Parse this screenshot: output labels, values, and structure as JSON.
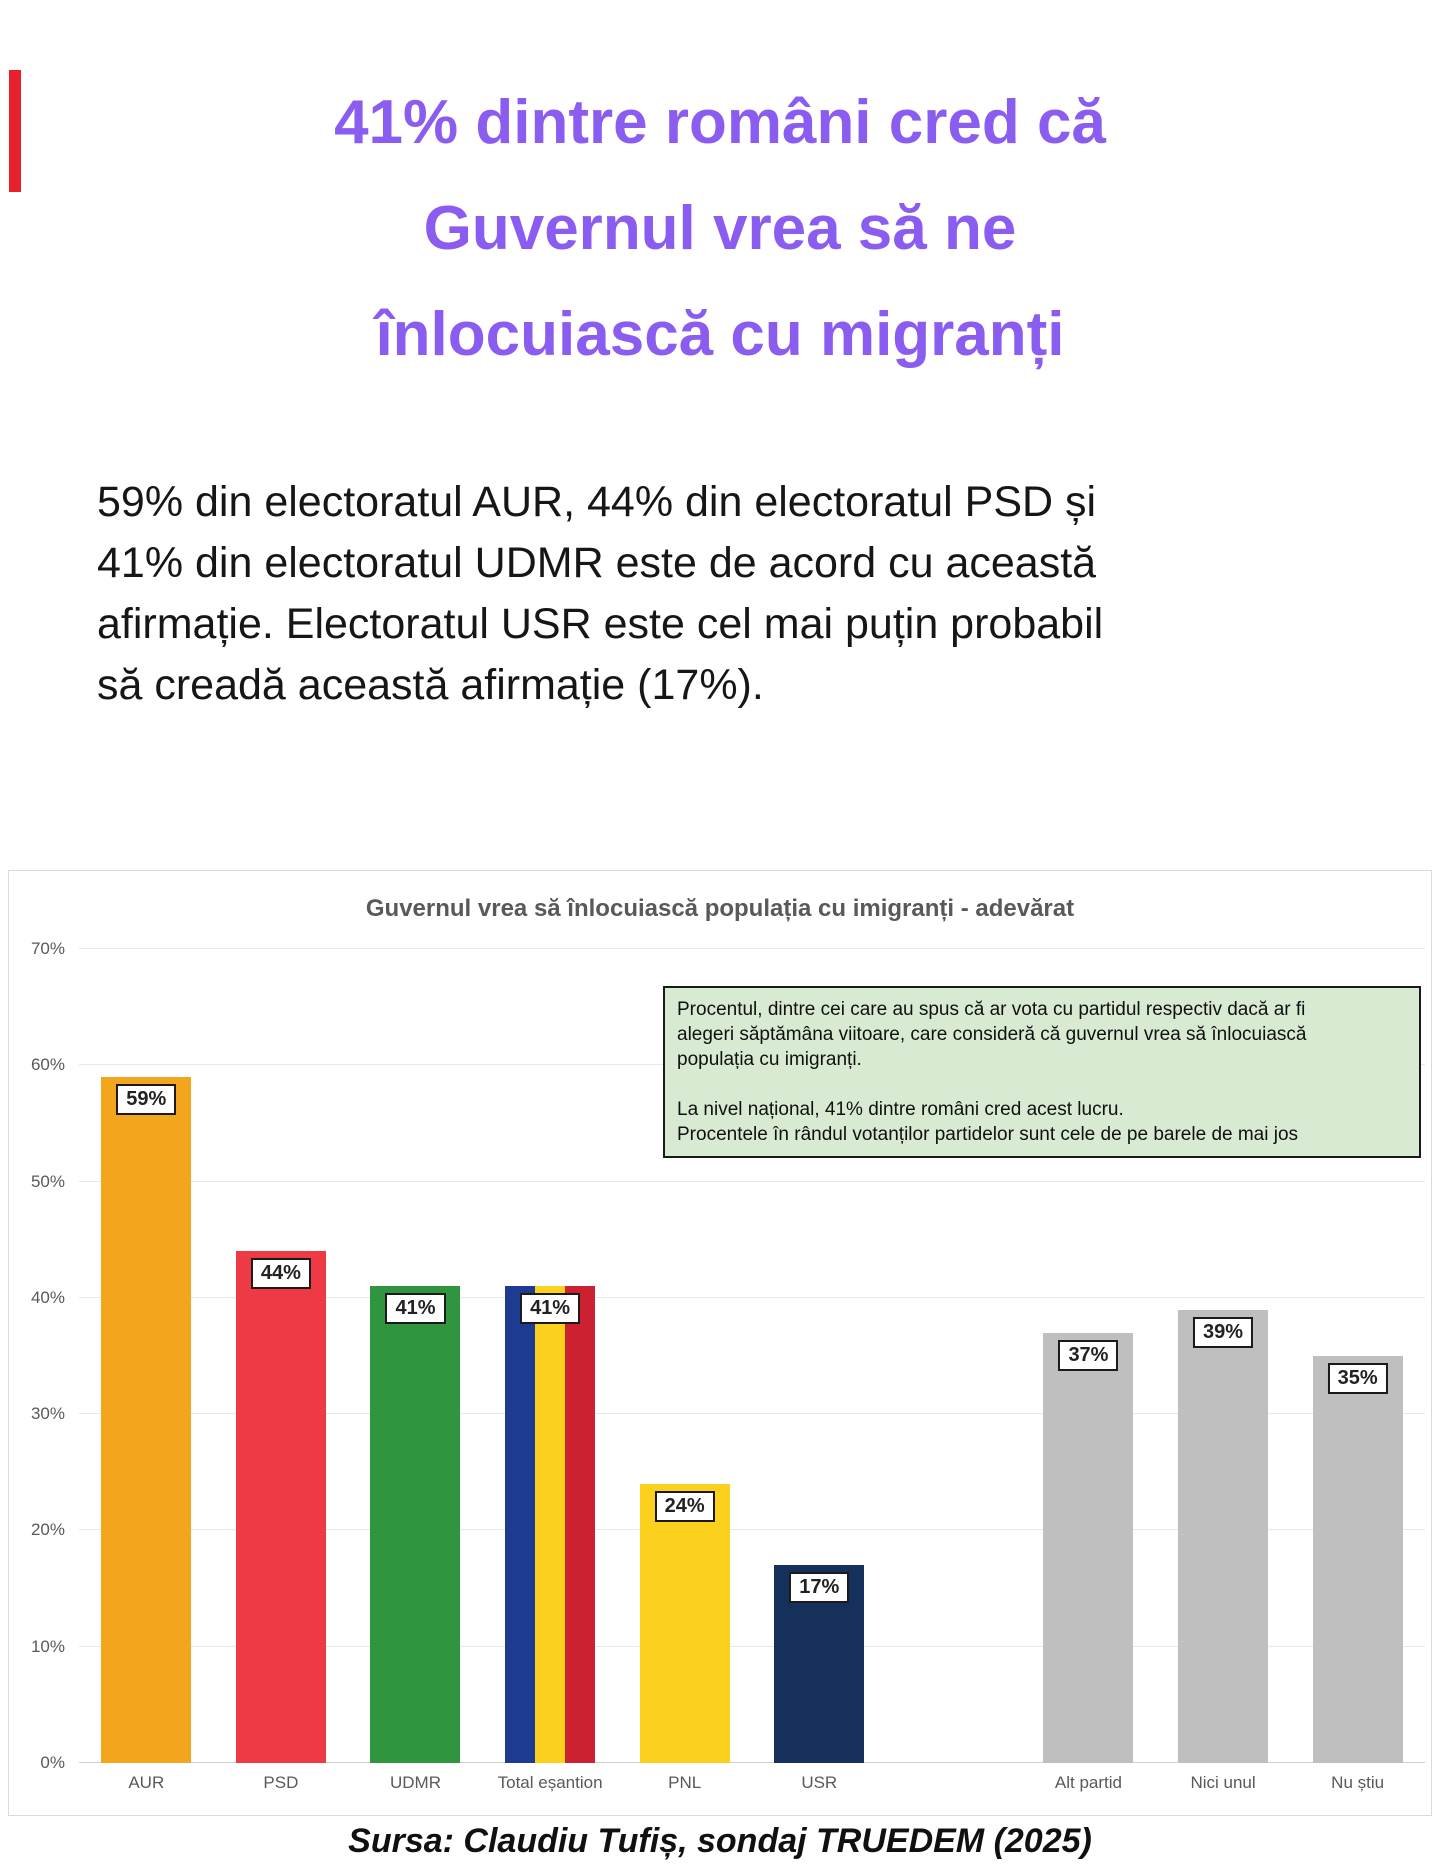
{
  "page": {
    "title_lines": [
      "41% dintre români cred că",
      "Guvernul vrea să ne",
      "înlocuiască cu migranți"
    ],
    "intro_lines": [
      "59% din electoratul AUR, 44% din electoratul PSD și",
      "41% din electoratul UDMR este de acord cu această",
      "afirmație. Electoratul USR este cel mai puțin probabil",
      "să creadă această afirmație (17%)."
    ],
    "source_text": "Sursa: Claudiu Tufiș, sondaj TRUEDEM (2025)"
  },
  "colors": {
    "title-purple": "#8A5CF0",
    "body-text": "#161616",
    "chart-title": "#595959",
    "axis-text": "#595959",
    "gridline": "#E8E8E8",
    "baseline": "#CFCFCF",
    "panel-border": "#DADADA",
    "annotation-bg": "#D9EAD3",
    "annotation-border": "#1A1A1A",
    "label-bg": "#FFFFFF",
    "label-border": "#1A1A1A",
    "edge-mark": "#E8202E"
  },
  "chart_data": {
    "type": "bar",
    "title": "Guvernul vrea să înlocuiască populația cu imigranți - adevărat",
    "xlabel": "",
    "ylabel": "",
    "ylim": [
      0,
      70
    ],
    "y_ticks": [
      "0%",
      "10%",
      "20%",
      "30%",
      "40%",
      "50%",
      "60%",
      "70%"
    ],
    "grid": true,
    "legend": false,
    "annotation_lines": [
      "Procentul, dintre cei care au spus că ar vota cu partidul respectiv dacă ar fi",
      "alegeri săptămâna viitoare, care consideră că guvernul vrea să înlocuiască",
      "populația cu imigranți.",
      "",
      "La nivel național, 41% dintre români cred acest lucru.",
      "Procentele în rândul votanților partidelor sunt cele de pe barele de mai jos"
    ],
    "categories": [
      "AUR",
      "PSD",
      "UDMR",
      "Total eșantion",
      "PNL",
      "USR",
      "Alt partid",
      "Nici unul",
      "Nu știu"
    ],
    "values": [
      59,
      44,
      41,
      41,
      24,
      17,
      37,
      39,
      35
    ],
    "bars": [
      {
        "label": "AUR",
        "value": 59,
        "display": "59%",
        "color": "#F3A51D"
      },
      {
        "label": "PSD",
        "value": 44,
        "display": "44%",
        "color": "#EE3A44"
      },
      {
        "label": "UDMR",
        "value": 41,
        "display": "41%",
        "color": "#30953F"
      },
      {
        "label": "Total eșantion",
        "value": 41,
        "display": "41%",
        "stripes": [
          "#1D3B90",
          "#FCD11D",
          "#CB2130"
        ]
      },
      {
        "label": "PNL",
        "value": 24,
        "display": "24%",
        "color": "#FCD11D"
      },
      {
        "label": "USR",
        "value": 17,
        "display": "17%",
        "color": "#14305B"
      },
      {
        "label": "",
        "value": null,
        "display": "",
        "spacer": true
      },
      {
        "label": "Alt partid",
        "value": 37,
        "display": "37%",
        "color": "#BFBFBF"
      },
      {
        "label": "Nici unul",
        "value": 39,
        "display": "39%",
        "color": "#BFBFBF"
      },
      {
        "label": "Nu știu",
        "value": 35,
        "display": "35%",
        "color": "#BFBFBF"
      }
    ]
  }
}
